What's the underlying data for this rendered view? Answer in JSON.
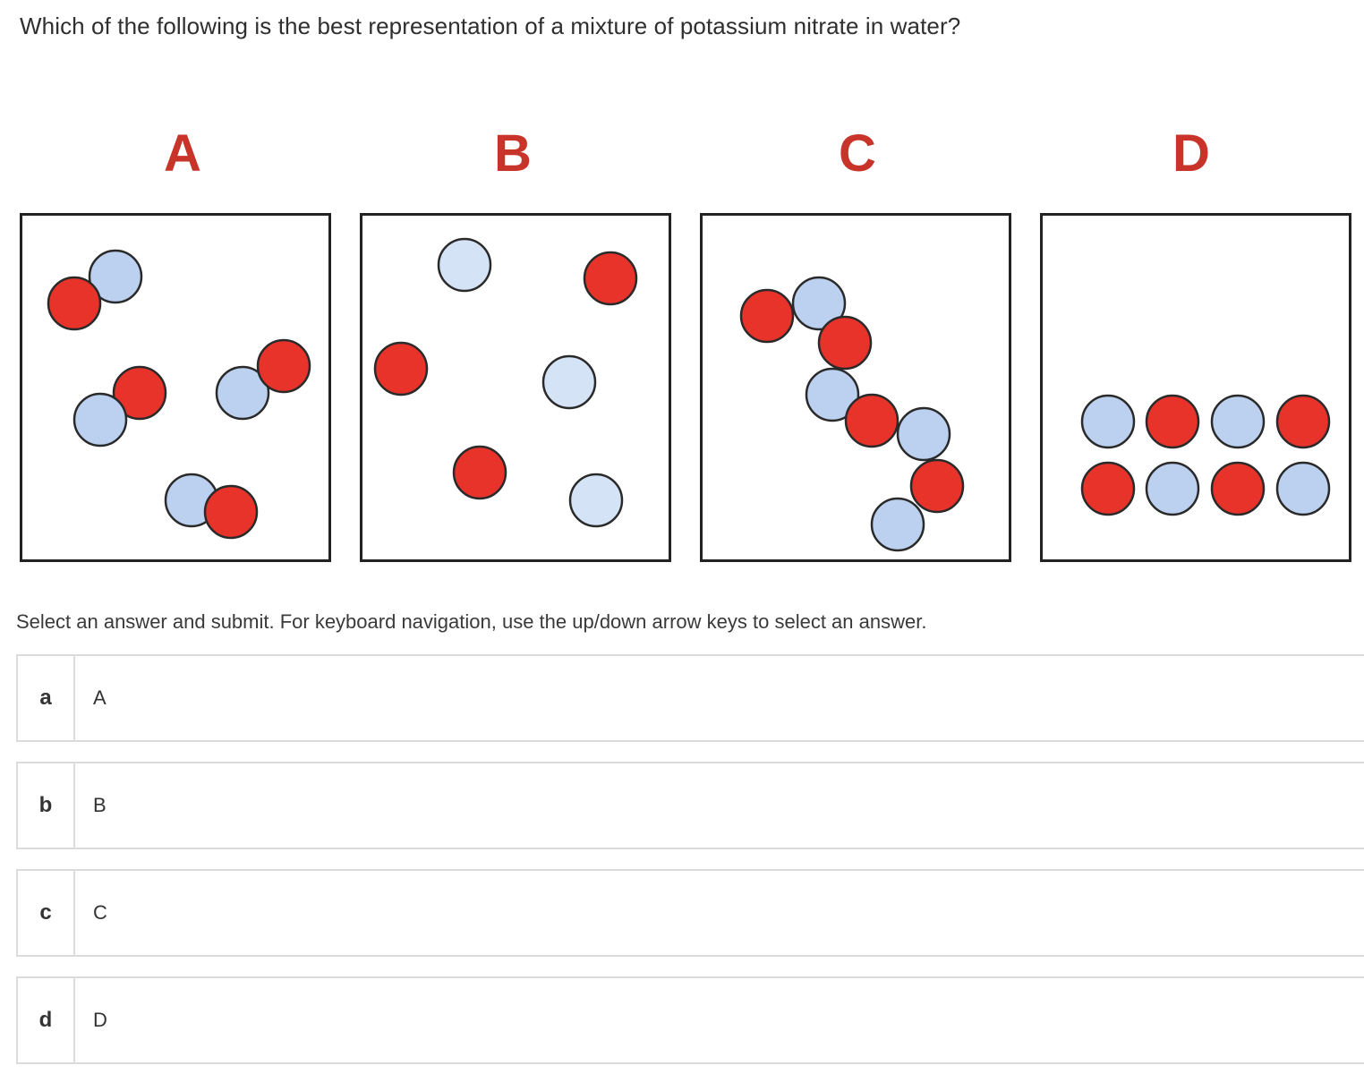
{
  "question": "Which of the following is the best representation of a mixture of potassium nitrate in water?",
  "panels": [
    {
      "label": "A"
    },
    {
      "label": "B"
    },
    {
      "label": "C"
    },
    {
      "label": "D"
    }
  ],
  "colors": {
    "red_particle": "#e8332a",
    "blue_particle_dark": "#bcd1f0",
    "blue_particle_light": "#d5e3f7",
    "label_red": "#c8342a"
  },
  "instructions": "Select an answer and submit. For keyboard navigation, use the up/down arrow keys to select an answer.",
  "options": [
    {
      "letter": "a",
      "text": "A"
    },
    {
      "letter": "b",
      "text": "B"
    },
    {
      "letter": "c",
      "text": "C"
    },
    {
      "letter": "d",
      "text": "D"
    }
  ]
}
